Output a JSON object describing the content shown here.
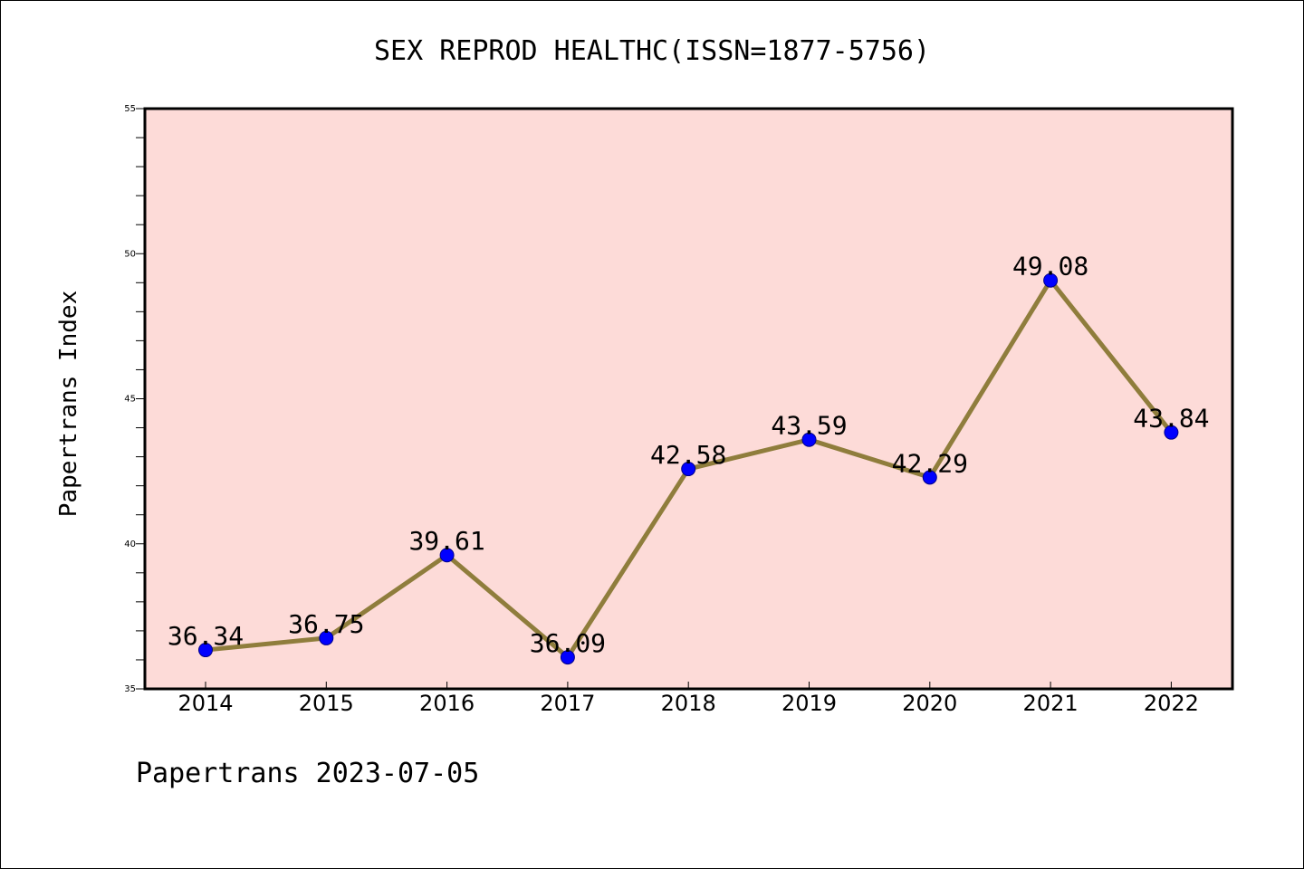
{
  "chart_data": {
    "type": "line",
    "title": "SEX REPROD HEALTHC(ISSN=1877-5756)",
    "ylabel": "Papertrans Index",
    "xlabel": "",
    "x": [
      "2014",
      "2015",
      "2016",
      "2017",
      "2018",
      "2019",
      "2020",
      "2021",
      "2022"
    ],
    "series": [
      {
        "values": [
          36.34,
          36.75,
          39.61,
          36.09,
          42.58,
          43.59,
          42.29,
          49.08,
          43.84
        ],
        "labels": [
          "36.34",
          "36.75",
          "39.61",
          "36.09",
          "42.58",
          "43.59",
          "42.29",
          "49.08",
          "43.84"
        ]
      }
    ],
    "ylim": [
      35,
      55
    ],
    "yticks": [
      "35",
      "40",
      "45",
      "50",
      "55"
    ],
    "grid": false,
    "colors": {
      "plot_background": "#fddbd8",
      "line": "#8f7d3c",
      "marker": "#0000ff"
    }
  },
  "footer": {
    "text": "Papertrans 2023-07-05"
  }
}
